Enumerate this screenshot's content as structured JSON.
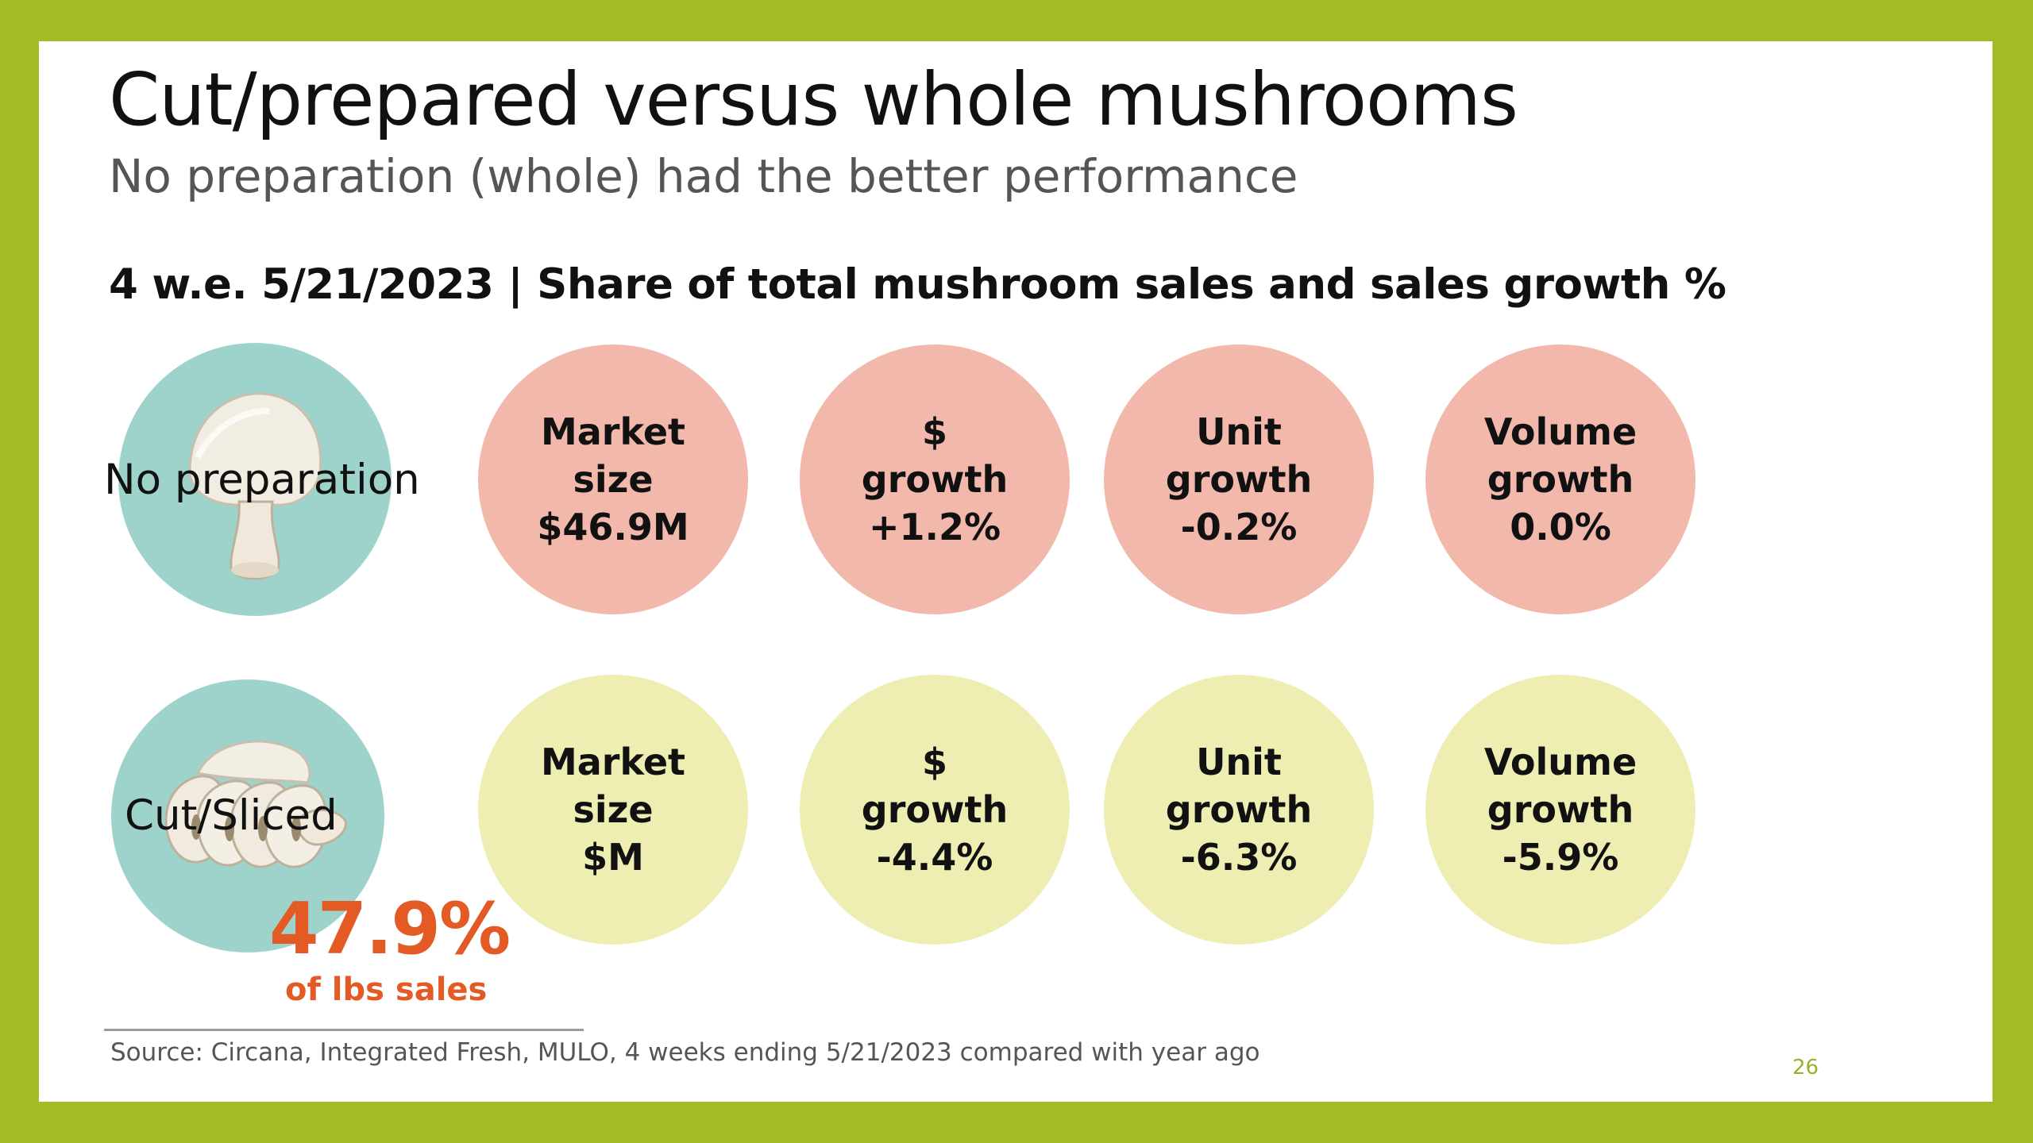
{
  "slide": {
    "title": "Cut/prepared versus whole mushrooms",
    "subtitle": "No preparation (whole) had the better performance",
    "section_heading": "4 w.e. 5/21/2023 | Share of total mushroom sales and sales growth %",
    "colors": {
      "frame": "#a5ba27",
      "category_circle": "#9ed3cc",
      "row1_metric_fill": "#f1b8ab",
      "row2_metric_fill": "#eeeeb3",
      "highlight": "#e35a25"
    },
    "rows": [
      {
        "label": "No preparation",
        "icon": "whole-mushroom-icon",
        "metrics": [
          {
            "line1": "Market",
            "line2": "size",
            "line3": "$46.9M"
          },
          {
            "line1": "$",
            "line2": "growth",
            "line3": "+1.2%"
          },
          {
            "line1": "Unit",
            "line2": "growth",
            "line3": "-0.2%"
          },
          {
            "line1": "Volume",
            "line2": "growth",
            "line3": "0.0%"
          }
        ]
      },
      {
        "label": "Cut/Sliced",
        "icon": "sliced-mushroom-icon",
        "metrics": [
          {
            "line1": "Market",
            "line2": "size",
            "line3": "$M"
          },
          {
            "line1": "$",
            "line2": "growth",
            "line3": "-4.4%"
          },
          {
            "line1": "Unit",
            "line2": "growth",
            "line3": "-6.3%"
          },
          {
            "line1": "Volume",
            "line2": "growth",
            "line3": "-5.9%"
          }
        ]
      }
    ],
    "share_callout": {
      "value": "47.9%",
      "caption": "of lbs sales"
    },
    "source": "Source: Circana, Integrated Fresh, MULO, 4 weeks ending 5/21/2023 compared with year ago",
    "page_number": "26"
  }
}
